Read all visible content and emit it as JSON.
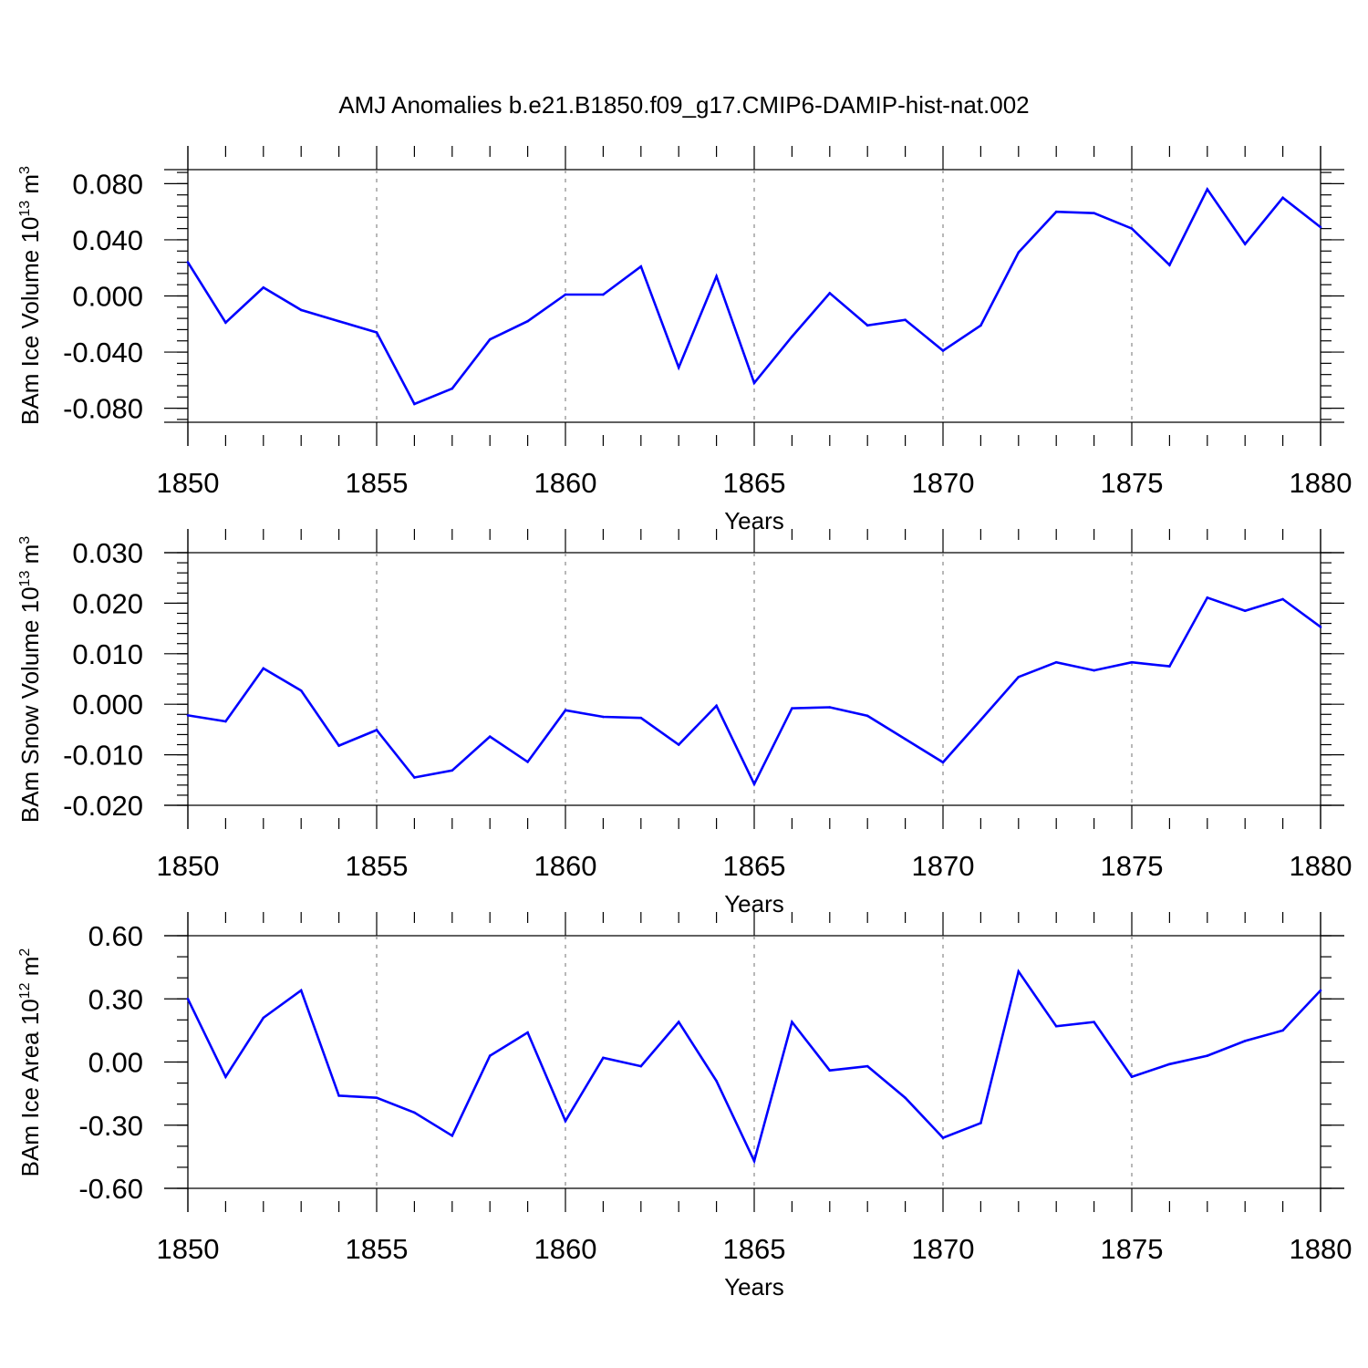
{
  "title": "AMJ Anomalies b.e21.B1850.f09_g17.CMIP6-DAMIP-hist-nat.002",
  "colors": {
    "series": "#0000ff",
    "axes": "#000000",
    "grid": "#888888"
  },
  "chart_data": [
    {
      "type": "line",
      "ylabel": {
        "text": "BAm Ice Volume 10",
        "sup": "13",
        "unit": " m",
        "unit_sup": "3"
      },
      "xlabel": "Years",
      "xlim": [
        1850,
        1880
      ],
      "ylim": [
        -0.09,
        0.09
      ],
      "x_ticks": [
        "1850",
        "1855",
        "1860",
        "1865",
        "1870",
        "1875",
        "1880"
      ],
      "y_ticks": [
        {
          "value": -0.08,
          "label": "-0.080"
        },
        {
          "value": -0.04,
          "label": "-0.040"
        },
        {
          "value": 0.0,
          "label": "0.000"
        },
        {
          "value": 0.04,
          "label": "0.040"
        },
        {
          "value": 0.08,
          "label": "0.080"
        }
      ],
      "y_minor_step": 0.008,
      "grid": "vertical dashed at major x ticks",
      "x": [
        1850,
        1851,
        1852,
        1853,
        1854,
        1855,
        1856,
        1857,
        1858,
        1859,
        1860,
        1861,
        1862,
        1863,
        1864,
        1865,
        1866,
        1867,
        1868,
        1869,
        1870,
        1871,
        1872,
        1873,
        1874,
        1875,
        1876,
        1877,
        1878,
        1879,
        1880
      ],
      "values": [
        0.024,
        -0.019,
        0.006,
        -0.01,
        -0.018,
        -0.026,
        -0.077,
        -0.066,
        -0.031,
        -0.018,
        0.001,
        0.001,
        0.021,
        -0.051,
        0.014,
        -0.062,
        -0.029,
        0.002,
        -0.021,
        -0.017,
        -0.039,
        -0.021,
        0.031,
        0.06,
        0.059,
        0.048,
        0.022,
        0.076,
        0.037,
        0.07,
        0.049
      ]
    },
    {
      "type": "line",
      "ylabel": {
        "text": "BAm Snow Volume 10",
        "sup": "13",
        "unit": " m",
        "unit_sup": "3"
      },
      "xlabel": "Years",
      "xlim": [
        1850,
        1880
      ],
      "ylim": [
        -0.02,
        0.03
      ],
      "x_ticks": [
        "1850",
        "1855",
        "1860",
        "1865",
        "1870",
        "1875",
        "1880"
      ],
      "y_ticks": [
        {
          "value": -0.02,
          "label": "-0.020"
        },
        {
          "value": -0.01,
          "label": "-0.010"
        },
        {
          "value": 0.0,
          "label": "0.000"
        },
        {
          "value": 0.01,
          "label": "0.010"
        },
        {
          "value": 0.02,
          "label": "0.020"
        },
        {
          "value": 0.03,
          "label": "0.030"
        }
      ],
      "y_minor_step": 0.002,
      "grid": "vertical dashed at major x ticks",
      "x": [
        1850,
        1851,
        1852,
        1853,
        1854,
        1855,
        1856,
        1857,
        1858,
        1859,
        1860,
        1861,
        1862,
        1863,
        1864,
        1865,
        1866,
        1867,
        1868,
        1869,
        1870,
        1871,
        1872,
        1873,
        1874,
        1875,
        1876,
        1877,
        1878,
        1879,
        1880
      ],
      "values": [
        -0.0022,
        -0.0034,
        0.0071,
        0.0027,
        -0.0082,
        -0.0051,
        -0.0145,
        -0.0131,
        -0.0064,
        -0.0114,
        -0.0012,
        -0.0025,
        -0.0027,
        -0.008,
        -0.0003,
        -0.0158,
        -0.0008,
        -0.0006,
        -0.0023,
        -0.0069,
        -0.0115,
        -0.0031,
        0.0054,
        0.0083,
        0.0067,
        0.0083,
        0.0075,
        0.0211,
        0.0185,
        0.0208,
        0.0153
      ]
    },
    {
      "type": "line",
      "ylabel": {
        "text": "BAm Ice Area 10",
        "sup": "12",
        "unit": " m",
        "unit_sup": "2"
      },
      "xlabel": "Years",
      "xlim": [
        1850,
        1880
      ],
      "ylim": [
        -0.6,
        0.6
      ],
      "x_ticks": [
        "1850",
        "1855",
        "1860",
        "1865",
        "1870",
        "1875",
        "1880"
      ],
      "y_ticks": [
        {
          "value": -0.6,
          "label": "-0.60"
        },
        {
          "value": -0.3,
          "label": "-0.30"
        },
        {
          "value": 0.0,
          "label": "0.00"
        },
        {
          "value": 0.3,
          "label": "0.30"
        },
        {
          "value": 0.6,
          "label": "0.60"
        }
      ],
      "y_minor_step": 0.1,
      "grid": "vertical dashed at major x ticks",
      "x": [
        1850,
        1851,
        1852,
        1853,
        1854,
        1855,
        1856,
        1857,
        1858,
        1859,
        1860,
        1861,
        1862,
        1863,
        1864,
        1865,
        1866,
        1867,
        1868,
        1869,
        1870,
        1871,
        1872,
        1873,
        1874,
        1875,
        1876,
        1877,
        1878,
        1879,
        1880
      ],
      "values": [
        0.3,
        -0.07,
        0.21,
        0.34,
        -0.16,
        -0.17,
        -0.24,
        -0.35,
        0.03,
        0.14,
        -0.28,
        0.02,
        -0.02,
        0.19,
        -0.09,
        -0.47,
        0.19,
        -0.04,
        -0.02,
        -0.17,
        -0.36,
        -0.29,
        0.43,
        0.17,
        0.19,
        -0.07,
        -0.01,
        0.03,
        0.1,
        0.15,
        0.34
      ]
    }
  ]
}
